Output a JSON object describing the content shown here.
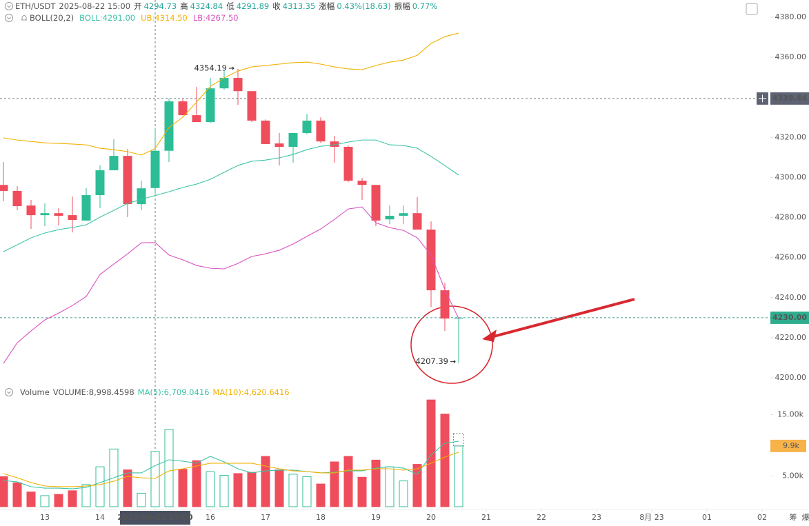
{
  "chart_data": {
    "type": "candlestick",
    "header": {
      "symbol": "ETH/USDT",
      "open_label": "开",
      "high_label": "高",
      "low_label": "低",
      "close_label": "收",
      "change_label": "涨幅",
      "change": "0.43%(18.63)",
      "amplitude_label": "振幅",
      "amplitude": "0.77%"
    },
    "indicator": "BOLL(20,2)",
    "crosshair": {
      "index": 11,
      "label": "2025-08-22 15:00",
      "price": 4339.44
    },
    "last_price": {
      "value": 4230,
      "label": "4230.00"
    },
    "open": [
      4296.3,
      4293.3,
      4286,
      4281.2,
      4282.2,
      4281.2,
      4278.5,
      4291.2,
      4303.6,
      4310.8,
      4286.7,
      4294.73,
      4313.35,
      4338,
      4331.1,
      4327.7,
      4344.5,
      4349.7,
      4343.1,
      4328.4,
      4317,
      4315.3,
      4322.2,
      4328.4,
      4318,
      4315.3,
      4298.4,
      4296.3,
      4279.1,
      4280.9,
      4282.2,
      4274,
      4243.7,
      4229.6
    ],
    "high": [
      4307.7,
      4295.7,
      4288.8,
      4287.1,
      4284.7,
      4290.5,
      4294.6,
      4306,
      4319.1,
      4314.2,
      4298.4,
      4324.84,
      4339.4,
      4339,
      4345.2,
      4349.7,
      4353.5,
      4354.19,
      4343.1,
      4329,
      4322.2,
      4322.2,
      4331.8,
      4330,
      4320.8,
      4316,
      4299.8,
      4296.3,
      4286,
      4286,
      4290.2,
      4278.1,
      4247.5,
      4230.3
    ],
    "low": [
      4288.1,
      4283.6,
      4274.3,
      4275.7,
      4276,
      4272.6,
      4278.5,
      4284.7,
      4303.6,
      4280.2,
      4283.6,
      4291.89,
      4307.7,
      4331,
      4327.7,
      4327,
      4343.8,
      4336.3,
      4327.7,
      4316.7,
      4306,
      4307.4,
      4321.5,
      4317.3,
      4307.4,
      4297.7,
      4288.8,
      4275.7,
      4276.7,
      4276.7,
      4274,
      4235.4,
      4223.4,
      4207.39
    ],
    "close": [
      4293.3,
      4285.7,
      4281.2,
      4282.2,
      4280.9,
      4278.8,
      4291.2,
      4303.6,
      4310.8,
      4286.7,
      4294.6,
      4313.35,
      4338,
      4331.1,
      4327.7,
      4344.5,
      4349.7,
      4343.1,
      4328.4,
      4316.7,
      4315.3,
      4322.2,
      4328.4,
      4318,
      4315.3,
      4298.4,
      4296.3,
      4278.5,
      4280.9,
      4282.2,
      4274,
      4243.7,
      4229.6,
      4230
    ],
    "up_color": "#2dbd96",
    "down_color": "#ef4d5c",
    "max_index": 17,
    "min_index": 33,
    "series": [
      {
        "name": "BOLL:4291.00",
        "color": "#3cc3a8",
        "values": [
          4263.0,
          4266.4,
          4269.9,
          4272.3,
          4274.0,
          4275.0,
          4276.4,
          4280.2,
          4283.6,
          4287.1,
          4289.1,
          4291,
          4292.9,
          4295.0,
          4296.7,
          4299.1,
          4302.6,
          4306.0,
          4308.1,
          4308.7,
          4309.8,
          4311.5,
          4313.9,
          4315.6,
          4316.3,
          4317.7,
          4318.7,
          4318.7,
          4316.3,
          4316.0,
          4314.6,
          4310.5,
          4306.0,
          4301.2
        ]
      },
      {
        "name": "UB:4314.50",
        "color": "#f2b000",
        "values": [
          4319.8,
          4318.7,
          4318.0,
          4317.3,
          4317.0,
          4316.7,
          4316.3,
          4314.6,
          4313.9,
          4312.9,
          4311.2,
          4314.5,
          4324.9,
          4330.1,
          4337.6,
          4345.5,
          4349.7,
          4353.1,
          4355.2,
          4355.9,
          4356.6,
          4357.3,
          4357.6,
          4356.6,
          4355.2,
          4354.2,
          4353.8,
          4355.9,
          4357.6,
          4358.6,
          4361.0,
          4366.9,
          4370.3,
          4372.1
        ]
      },
      {
        "name": "LB:4267.50",
        "color": "#d852c0",
        "values": [
          4207.2,
          4217.5,
          4223.4,
          4228.9,
          4232.3,
          4236.1,
          4240.6,
          4251.6,
          4256.8,
          4261.9,
          4267.4,
          4267.5,
          4261.3,
          4258.9,
          4256.1,
          4254.7,
          4254.4,
          4257.1,
          4260.6,
          4261.9,
          4263.7,
          4266.8,
          4270.6,
          4274.3,
          4279.1,
          4284.3,
          4285.3,
          4277.4,
          4275.0,
          4273.6,
          4269.9,
          4261.3,
          4244.1,
          4229.6
        ]
      }
    ],
    "ylim": [
      4195.9,
      4388.6
    ],
    "yticks": [
      {
        "value": 4200,
        "label": "4200.00"
      },
      {
        "value": 4220,
        "label": "4220.00"
      },
      {
        "value": 4240,
        "label": "4240.00"
      },
      {
        "value": 4260,
        "label": "4260.00"
      },
      {
        "value": 4280,
        "label": "4280.00"
      },
      {
        "value": 4300,
        "label": "4300.00"
      },
      {
        "value": 4320,
        "label": "4320.00"
      },
      {
        "value": 4340,
        "label": "4340.00"
      },
      {
        "value": 4360,
        "label": "4360.00"
      },
      {
        "value": 4380,
        "label": "4380.00"
      }
    ],
    "xlim": [
      -0.25,
      55.5
    ],
    "xticks": [
      {
        "value": 3,
        "label": "13"
      },
      {
        "value": 7,
        "label": "14"
      },
      {
        "value": 15,
        "label": "16"
      },
      {
        "value": 19,
        "label": "17"
      },
      {
        "value": 23,
        "label": "18"
      },
      {
        "value": 27,
        "label": "19"
      },
      {
        "value": 31,
        "label": "20"
      },
      {
        "value": 35,
        "label": "21"
      },
      {
        "value": 39,
        "label": "22"
      },
      {
        "value": 43,
        "label": "23"
      },
      {
        "value": 47,
        "label": "8月 23"
      },
      {
        "value": 51,
        "label": "01"
      },
      {
        "value": 55,
        "label": "02"
      }
    ],
    "side_tabs": [
      "筹",
      "爆"
    ],
    "volume": {
      "title": "Volume",
      "name": "VOLUME:8,998.4598",
      "values": [
        4900,
        3900,
        2400,
        1800,
        2000,
        2600,
        3600,
        6500,
        9400,
        6000,
        2200,
        8998.4598,
        12600,
        6100,
        7500,
        5700,
        5100,
        5400,
        5600,
        8200,
        6000,
        5300,
        4900,
        3700,
        7300,
        8200,
        4800,
        7600,
        6500,
        4200,
        6900,
        17400,
        15100,
        9900
      ],
      "value_labels": [
        null,
        null,
        null,
        null,
        null,
        null,
        null,
        null,
        null,
        null,
        null,
        null,
        null,
        null,
        null,
        null,
        null,
        null,
        null,
        null,
        null,
        null,
        null,
        null,
        null,
        null,
        null,
        null,
        null,
        null,
        null,
        null,
        null,
        "9.9k"
      ],
      "label_color": "#f7b24a",
      "ylim": [
        0,
        17640
      ],
      "yticks": [
        {
          "value": 5000,
          "label": "5.00k"
        },
        {
          "value": 15000,
          "label": "15.00k"
        }
      ],
      "series": [
        {
          "name": "MA(5):6,709.0416",
          "color": "#3cc3a8",
          "values": [
            4270,
            4040,
            3260,
            3030,
            3030,
            2920,
            3150,
            3930,
            4720,
            5510,
            5510,
            6709.0416,
            7640,
            7420,
            7080,
            8200,
            7300,
            6180,
            5510,
            5840,
            5960,
            5960,
            5730,
            5510,
            5620,
            5840,
            5840,
            6290,
            6520,
            6290,
            5280,
            8430,
            10340,
            10670
          ]
        },
        {
          "name": "MA(10):4,620.6416",
          "color": "#f2b000",
          "values": [
            5390,
            4720,
            3930,
            3370,
            3260,
            3260,
            3370,
            3600,
            4160,
            4940,
            4720,
            4620.6416,
            5840,
            6180,
            6630,
            7080,
            7080,
            7080,
            7080,
            6630,
            6180,
            5840,
            5730,
            5510,
            5510,
            5960,
            5960,
            6180,
            6180,
            5960,
            6180,
            7080,
            8090,
            8880
          ]
        }
      ]
    }
  }
}
